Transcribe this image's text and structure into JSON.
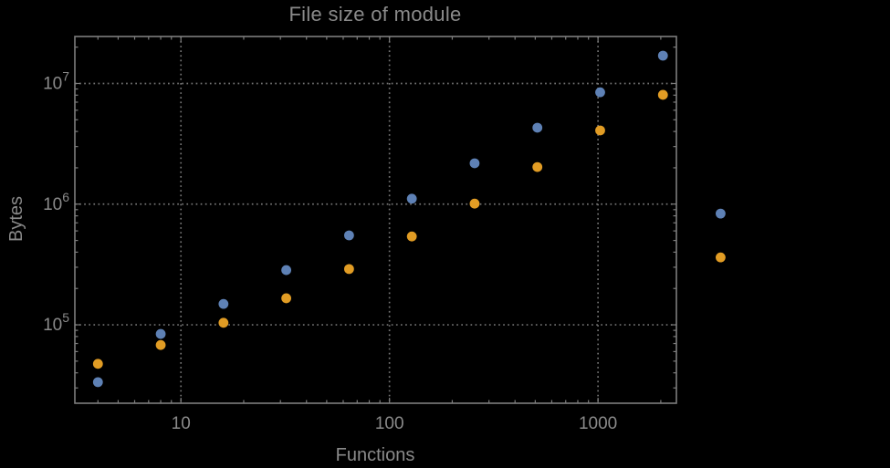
{
  "chart_data": {
    "type": "scatter",
    "title": "File size of module",
    "xlabel": "Functions",
    "ylabel": "Bytes",
    "x_scale": "log",
    "y_scale": "log",
    "grid": "dotted-at-major-ticks",
    "legend": "none",
    "xlim": [
      3.1,
      2376
    ],
    "ylim": [
      22400,
      24500000
    ],
    "x_major_ticks": [
      10,
      100,
      1000
    ],
    "x_major_tick_labels": [
      "10",
      "100",
      "1000"
    ],
    "y_major_ticks": [
      100000,
      1000000,
      10000000
    ],
    "y_major_tick_labels": [
      "10^5",
      "10^6",
      "10^7"
    ],
    "note": "last point pair lies outside right frame edge (not clipped)",
    "x": [
      4,
      8,
      16,
      32,
      64,
      128,
      256,
      512,
      1024,
      2048,
      3870
    ],
    "series": [
      {
        "name": "blue-points",
        "color": "#5e81b5",
        "values": [
          33500,
          84000,
          149000,
          284000,
          551000,
          1110000,
          2180000,
          4300000,
          8450000,
          17000000,
          835000
        ]
      },
      {
        "name": "orange-points",
        "color": "#e19c24",
        "values": [
          47500,
          68000,
          104000,
          166000,
          290000,
          540000,
          1010000,
          2030000,
          4080000,
          8050000,
          362000
        ]
      }
    ],
    "frame_color": "#7d7d7d",
    "grid_color": "#737373",
    "text_color": "#8a8a8a",
    "background_color": "#000000"
  }
}
